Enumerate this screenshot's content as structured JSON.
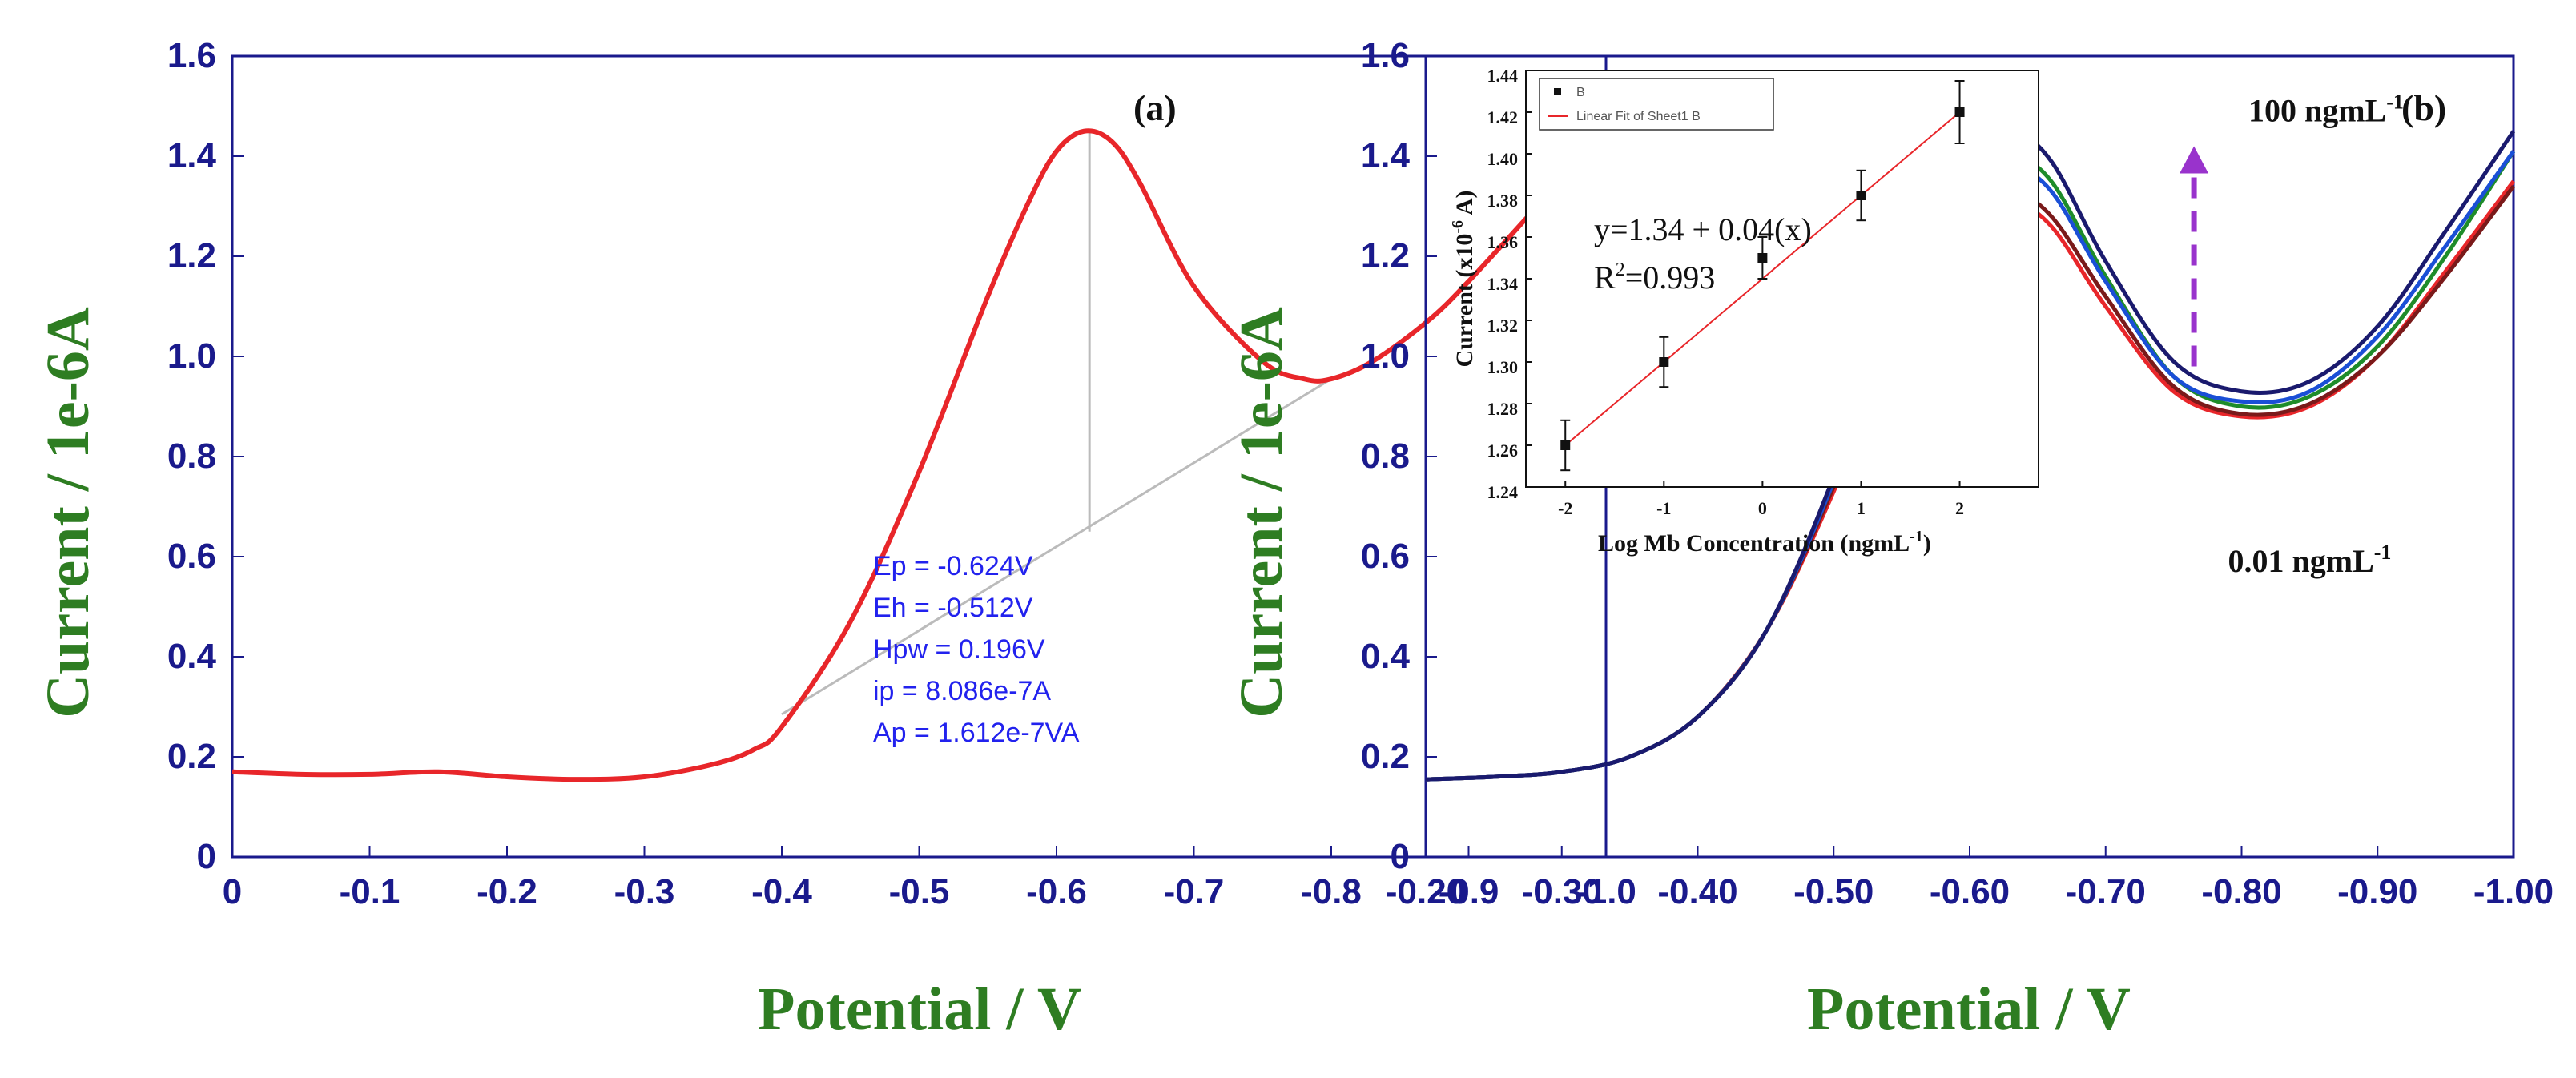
{
  "chart_data": [
    {
      "type": "line",
      "panel_label": "(a)",
      "xlabel": "Potential / V",
      "ylabel": "Current / 1e-6A",
      "xlim": [
        0,
        -1.0
      ],
      "ylim": [
        0,
        1.6
      ],
      "x_ticks": [
        {
          "value": 0,
          "label": "0"
        },
        {
          "value": -0.1,
          "label": "-0.1"
        },
        {
          "value": -0.2,
          "label": "-0.2"
        },
        {
          "value": -0.3,
          "label": "-0.3"
        },
        {
          "value": -0.4,
          "label": "-0.4"
        },
        {
          "value": -0.5,
          "label": "-0.5"
        },
        {
          "value": -0.6,
          "label": "-0.6"
        },
        {
          "value": -0.7,
          "label": "-0.7"
        },
        {
          "value": -0.8,
          "label": "-0.8"
        },
        {
          "value": -0.9,
          "label": "-0.9"
        },
        {
          "value": -1.0,
          "label": "-1.0"
        }
      ],
      "y_ticks": [
        {
          "value": 0,
          "label": "0"
        },
        {
          "value": 0.2,
          "label": "0.2"
        },
        {
          "value": 0.4,
          "label": "0.4"
        },
        {
          "value": 0.6,
          "label": "0.6"
        },
        {
          "value": 0.8,
          "label": "0.8"
        },
        {
          "value": 1.0,
          "label": "1.0"
        },
        {
          "value": 1.2,
          "label": "1.2"
        },
        {
          "value": 1.4,
          "label": "1.4"
        },
        {
          "value": 1.6,
          "label": "1.6"
        }
      ],
      "series": [
        {
          "color": "#e8262a",
          "x": [
            0,
            -0.05,
            -0.1,
            -0.15,
            -0.2,
            -0.25,
            -0.3,
            -0.35,
            -0.38,
            -0.4,
            -0.45,
            -0.5,
            -0.55,
            -0.58,
            -0.6,
            -0.62,
            -0.64,
            -0.66,
            -0.7,
            -0.75,
            -0.78,
            -0.8,
            -0.83,
            -0.87,
            -0.9,
            -0.95,
            -1.0
          ],
          "y": [
            0.17,
            0.165,
            0.165,
            0.17,
            0.16,
            0.155,
            0.16,
            0.185,
            0.215,
            0.26,
            0.47,
            0.77,
            1.12,
            1.31,
            1.41,
            1.45,
            1.43,
            1.35,
            1.14,
            0.99,
            0.955,
            0.955,
            0.99,
            1.07,
            1.15,
            1.3,
            1.45
          ]
        }
      ],
      "baseline": {
        "color": "#bbbbbb",
        "x": [
          -0.4,
          -0.8
        ],
        "y": [
          0.285,
          0.955
        ]
      },
      "peak_line": {
        "color": "#bbbbbb",
        "x": -0.624,
        "y": [
          0.65,
          1.45
        ]
      },
      "annotations": [
        "Ep = -0.624V",
        "Eh = -0.512V",
        "Hpw = 0.196V",
        "ip = 8.086e-7A",
        "Ap = 1.612e-7VA"
      ]
    },
    {
      "type": "line",
      "panel_label": "(b)",
      "xlabel": "Potential / V",
      "ylabel": "Current / 1e-6A",
      "xlim": [
        -0.2,
        -1.0
      ],
      "ylim": [
        0,
        1.6
      ],
      "x_ticks": [
        {
          "value": -0.2,
          "label": "-0.20"
        },
        {
          "value": -0.3,
          "label": "-0.30"
        },
        {
          "value": -0.4,
          "label": "-0.40"
        },
        {
          "value": -0.5,
          "label": "-0.50"
        },
        {
          "value": -0.6,
          "label": "-0.60"
        },
        {
          "value": -0.7,
          "label": "-0.70"
        },
        {
          "value": -0.8,
          "label": "-0.80"
        },
        {
          "value": -0.9,
          "label": "-0.90"
        },
        {
          "value": -1.0,
          "label": "-1.00"
        }
      ],
      "y_ticks": [
        {
          "value": 0,
          "label": "0"
        },
        {
          "value": 0.2,
          "label": "0.2"
        },
        {
          "value": 0.4,
          "label": "0.4"
        },
        {
          "value": 0.6,
          "label": "0.6"
        },
        {
          "value": 0.8,
          "label": "0.8"
        },
        {
          "value": 1.0,
          "label": "1.0"
        },
        {
          "value": 1.2,
          "label": "1.2"
        },
        {
          "value": 1.4,
          "label": "1.4"
        },
        {
          "value": 1.6,
          "label": "1.6"
        }
      ],
      "x": [
        -0.2,
        -0.25,
        -0.3,
        -0.35,
        -0.4,
        -0.45,
        -0.5,
        -0.55,
        -0.6,
        -0.63,
        -0.66,
        -0.7,
        -0.75,
        -0.8,
        -0.85,
        -0.9,
        -0.95,
        -1.0
      ],
      "series": [
        {
          "color": "#e8262a",
          "y": [
            0.155,
            0.16,
            0.17,
            0.2,
            0.28,
            0.45,
            0.73,
            1.07,
            1.29,
            1.31,
            1.26,
            1.1,
            0.93,
            0.88,
            0.9,
            1.0,
            1.17,
            1.35
          ]
        },
        {
          "color": "#7a1a1a",
          "y": [
            0.155,
            0.16,
            0.17,
            0.2,
            0.28,
            0.45,
            0.74,
            1.09,
            1.31,
            1.33,
            1.28,
            1.12,
            0.94,
            0.885,
            0.905,
            1.0,
            1.16,
            1.34
          ]
        },
        {
          "color": "#1e8c2a",
          "y": [
            0.155,
            0.16,
            0.17,
            0.2,
            0.28,
            0.45,
            0.75,
            1.11,
            1.37,
            1.4,
            1.35,
            1.16,
            0.96,
            0.9,
            0.92,
            1.02,
            1.2,
            1.41
          ]
        },
        {
          "color": "#1a4fd6",
          "y": [
            0.155,
            0.16,
            0.17,
            0.2,
            0.28,
            0.45,
            0.75,
            1.12,
            1.36,
            1.38,
            1.33,
            1.15,
            0.96,
            0.91,
            0.93,
            1.04,
            1.22,
            1.41
          ]
        },
        {
          "color": "#1a1a6e",
          "y": [
            0.155,
            0.16,
            0.17,
            0.2,
            0.28,
            0.45,
            0.76,
            1.15,
            1.42,
            1.45,
            1.39,
            1.19,
            0.99,
            0.93,
            0.95,
            1.06,
            1.25,
            1.45
          ]
        }
      ],
      "arrow": {
        "x": -0.765,
        "y": [
          0.98,
          1.42
        ],
        "color": "#9933cc"
      },
      "labels": [
        {
          "text": "100 ngmL",
          "sup": "-1",
          "x": -0.805,
          "y": 1.47
        },
        {
          "text": "0.01 ngmL",
          "sup": "-1",
          "x": -0.79,
          "y": 0.57
        }
      ],
      "inset": {
        "type": "scatter",
        "xlabel": "Log Mb Concentration (ngmL",
        "xlabel_sup": "-1",
        "xlabel_close": ")",
        "ylabel": "Current (x10",
        "ylabel_sup": "-6",
        "ylabel_close": " A)",
        "xlim": [
          -2.4,
          2.8
        ],
        "ylim": [
          1.24,
          1.44
        ],
        "x_ticks": [
          {
            "value": -2,
            "label": "-2"
          },
          {
            "value": -1,
            "label": "-1"
          },
          {
            "value": 0,
            "label": "0"
          },
          {
            "value": 1,
            "label": "1"
          },
          {
            "value": 2,
            "label": "2"
          }
        ],
        "y_ticks": [
          {
            "value": 1.24,
            "label": "1.24"
          },
          {
            "value": 1.26,
            "label": "1.26"
          },
          {
            "value": 1.28,
            "label": "1.28"
          },
          {
            "value": 1.3,
            "label": "1.30"
          },
          {
            "value": 1.32,
            "label": "1.32"
          },
          {
            "value": 1.34,
            "label": "1.34"
          },
          {
            "value": 1.36,
            "label": "1.36"
          },
          {
            "value": 1.38,
            "label": "1.38"
          },
          {
            "value": 1.4,
            "label": "1.40"
          },
          {
            "value": 1.42,
            "label": "1.42"
          },
          {
            "value": 1.44,
            "label": "1.44"
          }
        ],
        "points": {
          "x": [
            -2,
            -1,
            0,
            1,
            2
          ],
          "y": [
            1.26,
            1.3,
            1.35,
            1.38,
            1.42
          ],
          "err": [
            0.012,
            0.012,
            0.01,
            0.012,
            0.015
          ]
        },
        "fit": {
          "x": [
            -2,
            2
          ],
          "y": [
            1.26,
            1.42
          ],
          "color": "#e8262a"
        },
        "legend": [
          "B",
          "Linear Fit of Sheet1 B"
        ],
        "equation": "y=1.34 + 0.04(x)",
        "r2_prefix": "R",
        "r2_sup": "2",
        "r2_value": "=0.993"
      }
    }
  ]
}
